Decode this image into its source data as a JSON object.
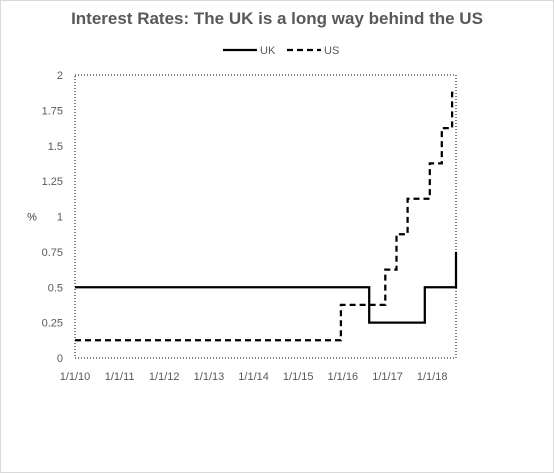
{
  "chart_data": {
    "type": "line",
    "title": "Interest Rates: The UK is a long way behind the US",
    "xlabel": "",
    "ylabel": "%",
    "x_type": "date",
    "xlim": [
      "2010-01-01",
      "2018-07-15"
    ],
    "ylim": [
      0,
      2
    ],
    "y_ticks": [
      0,
      0.25,
      0.5,
      0.75,
      1,
      1.25,
      1.5,
      1.75,
      2
    ],
    "y_tick_labels": [
      "0",
      "0.25",
      "0.5",
      "0.75",
      "1",
      "1.25",
      "1.5",
      "1.75",
      "2"
    ],
    "x_ticks": [
      "2010-01-01",
      "2011-01-01",
      "2012-01-01",
      "2013-01-01",
      "2014-01-01",
      "2015-01-01",
      "2016-01-01",
      "2017-01-01",
      "2018-01-01"
    ],
    "x_tick_labels": [
      "1/1/10",
      "1/1/11",
      "1/1/12",
      "1/1/13",
      "1/1/14",
      "1/1/15",
      "1/1/16",
      "1/1/17",
      "1/1/18"
    ],
    "grid": false,
    "legend_position": "top",
    "plot_border": "dotted",
    "series": [
      {
        "name": "UK",
        "style": "solid",
        "color": "#000000",
        "step": true,
        "points": [
          [
            "2010-01-01",
            0.5
          ],
          [
            "2016-08-04",
            0.25
          ],
          [
            "2017-11-02",
            0.5
          ],
          [
            "2018-07-15",
            0.75
          ]
        ]
      },
      {
        "name": "US",
        "style": "dashed",
        "color": "#000000",
        "step": true,
        "points": [
          [
            "2010-01-01",
            0.125
          ],
          [
            "2015-12-16",
            0.375
          ],
          [
            "2016-12-14",
            0.625
          ],
          [
            "2017-03-15",
            0.875
          ],
          [
            "2017-06-14",
            1.125
          ],
          [
            "2017-12-13",
            1.375
          ],
          [
            "2018-03-21",
            1.625
          ],
          [
            "2018-06-13",
            1.875
          ]
        ]
      }
    ]
  }
}
